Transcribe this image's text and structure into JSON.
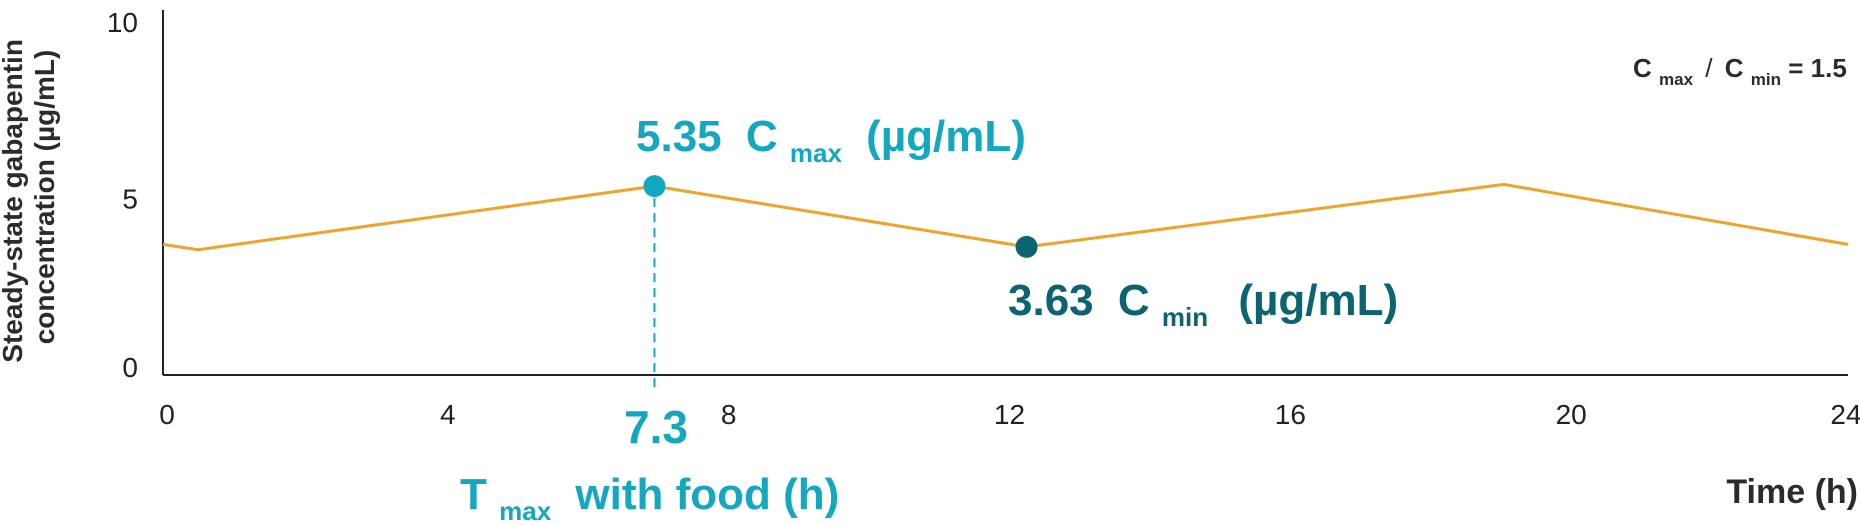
{
  "chart_data": {
    "type": "line",
    "xlabel": "Time (h)",
    "ylabel_line1": "Steady-state gabapentin",
    "ylabel_line2": "concentration (µg/mL)",
    "xlim": [
      0,
      24
    ],
    "ylim": [
      0,
      10
    ],
    "x_ticks": [
      "0",
      "4",
      "8",
      "12",
      "16",
      "20",
      "24"
    ],
    "y_ticks": [
      "0",
      "5",
      "10"
    ],
    "grid": false,
    "series": [
      {
        "x": [
          0,
          0.5,
          7.0,
          12.3,
          19.1,
          24
        ],
        "y": [
          3.7,
          3.55,
          5.35,
          3.63,
          5.4,
          3.7
        ]
      }
    ],
    "cmax": {
      "value_label": "5.35",
      "symbol": "C",
      "subscript": "max",
      "unit": "(µg/mL)",
      "x": 7.0,
      "y": 5.35
    },
    "cmin": {
      "value_label": "3.63",
      "symbol": "C",
      "subscript": "min",
      "unit": "(µg/mL)",
      "x": 12.3,
      "y": 3.63
    },
    "tmax": {
      "value_label": "7.3",
      "symbol": "T",
      "subscript": "max",
      "suffix": "with food (h)"
    },
    "ratio": {
      "c1": "C",
      "sub1": "max",
      "sep": "/",
      "c2": "C",
      "sub2": "min",
      "value": "= 1.5"
    },
    "colors": {
      "line": "#f0a22a",
      "cmax": "#13a8bf",
      "cmin": "#0b6470",
      "axis": "#222222"
    }
  }
}
